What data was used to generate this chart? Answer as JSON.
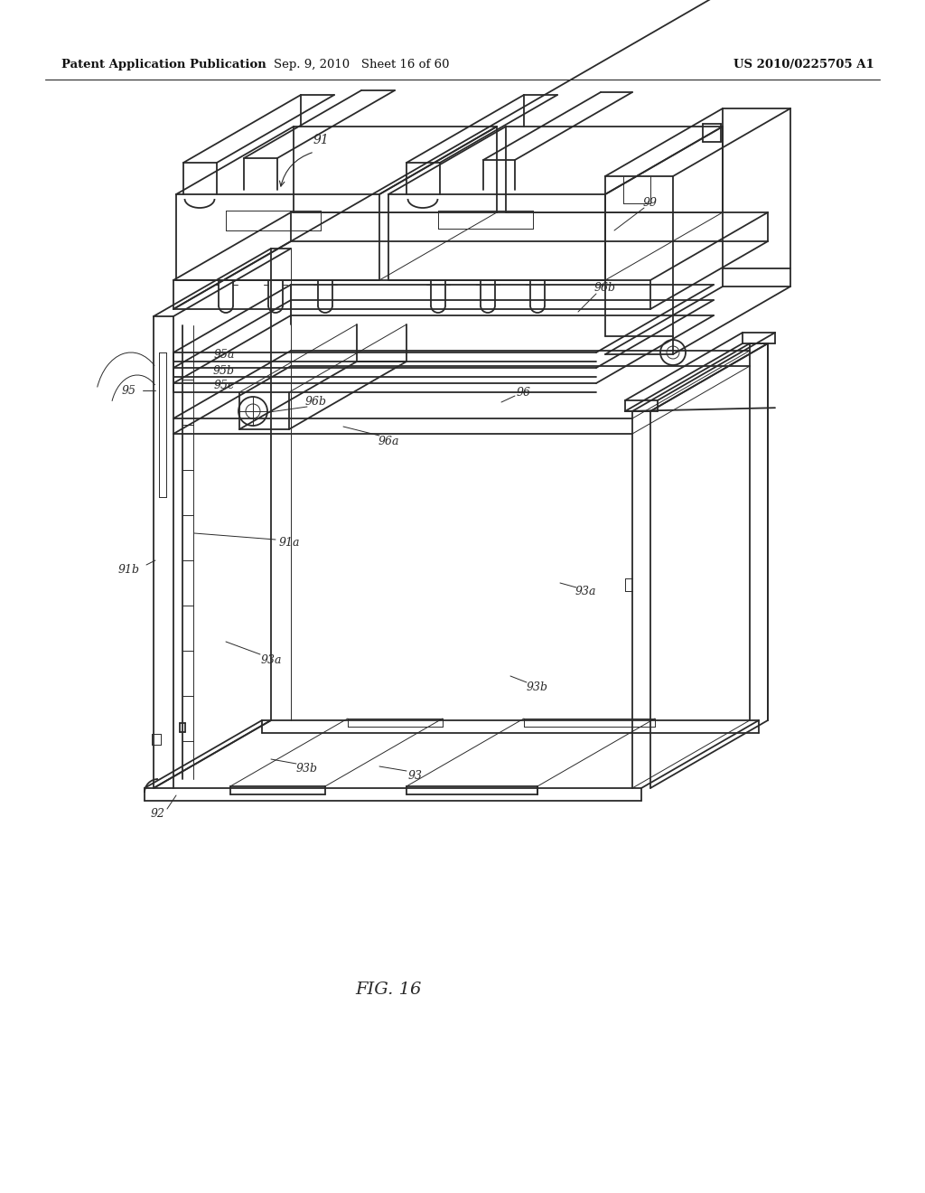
{
  "bg_color": "#ffffff",
  "line_color": "#2a2a2a",
  "label_color": "#2a2a2a",
  "header_left": "Patent Application Publication",
  "header_mid": "Sep. 9, 2010   Sheet 16 of 60",
  "header_right": "US 2010/0225705 A1",
  "figure_label": "FIG. 16",
  "lw_main": 1.3,
  "lw_thin": 0.7,
  "lw_thick": 2.0
}
